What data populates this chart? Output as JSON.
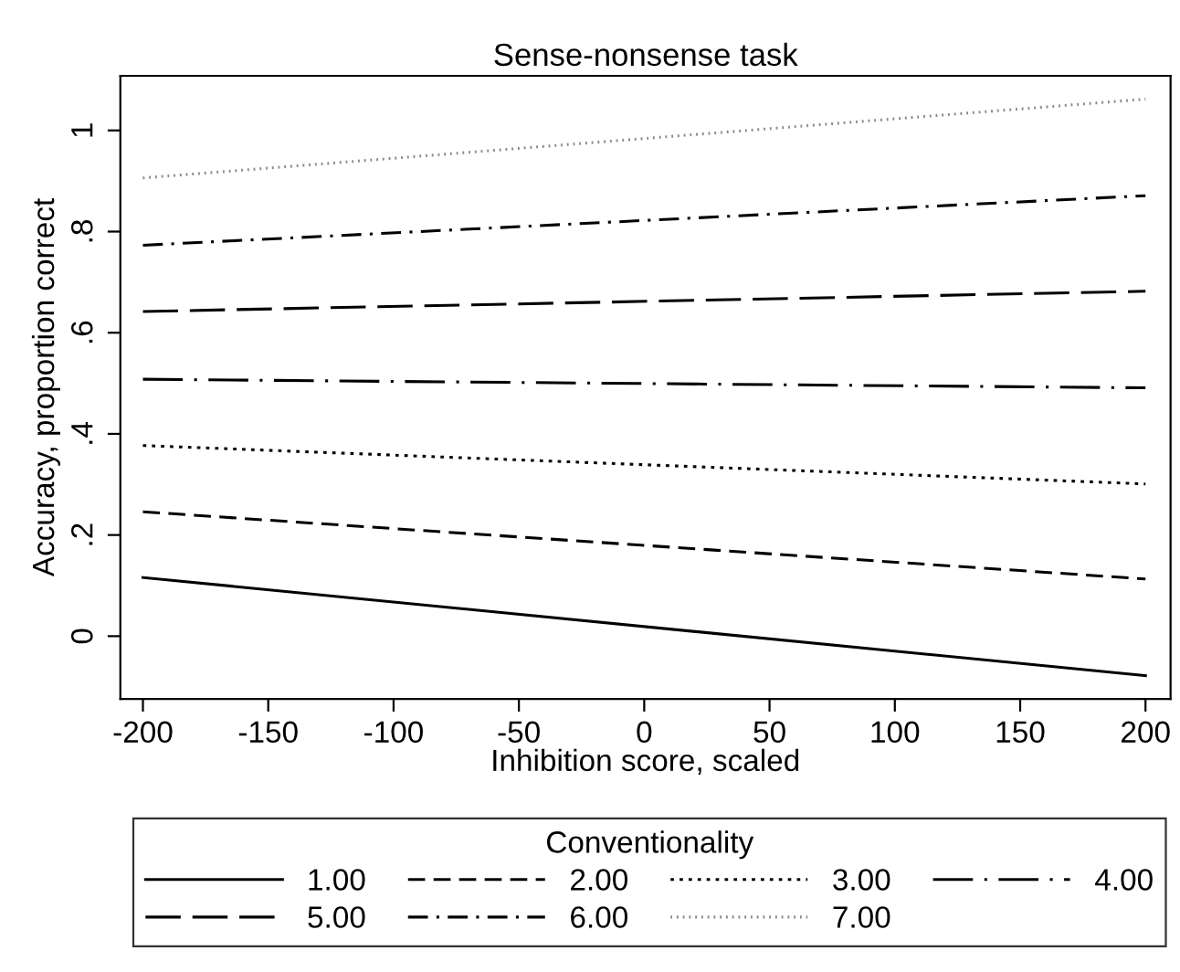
{
  "chart_data": {
    "type": "line",
    "title": "Sense-nonsense task",
    "xlabel": "Inhibition score, scaled",
    "ylabel": "Accuracy, proportion correct",
    "legend_title": "Conventionality",
    "legend": "bottom",
    "marker": "none",
    "grid": false,
    "x": [
      -200,
      200
    ],
    "xlim": [
      -209,
      210
    ],
    "xticks": [
      -200,
      -150,
      -100,
      -50,
      0,
      50,
      100,
      150,
      200
    ],
    "ylim": [
      -0.124,
      1.108
    ],
    "yticks": [
      0,
      {
        "value": 0.2,
        "label": ".2"
      },
      {
        "value": 0.4,
        "label": ".4"
      },
      {
        "value": 0.6,
        "label": ".6"
      },
      {
        "value": 0.8,
        "label": ".8"
      },
      1
    ],
    "series": [
      {
        "name": "1.00",
        "color": "#000000",
        "line_style": "solid",
        "values": [
          0.116,
          -0.078
        ]
      },
      {
        "name": "2.00",
        "color": "#000000",
        "line_style": "dashed",
        "values": [
          0.246,
          0.113
        ]
      },
      {
        "name": "3.00",
        "color": "#000000",
        "line_style": "dotted",
        "values": [
          0.377,
          0.301
        ]
      },
      {
        "name": "4.00",
        "color": "#000000",
        "line_style": "longdashdot",
        "values": [
          0.508,
          0.491
        ]
      },
      {
        "name": "5.00",
        "color": "#000000",
        "line_style": "longdash",
        "values": [
          0.642,
          0.682
        ]
      },
      {
        "name": "6.00",
        "color": "#000000",
        "line_style": "dashdot",
        "values": [
          0.773,
          0.871
        ]
      },
      {
        "name": "7.00",
        "color": "#888888",
        "line_style": "finedotted",
        "values": [
          0.906,
          1.062
        ]
      }
    ]
  }
}
